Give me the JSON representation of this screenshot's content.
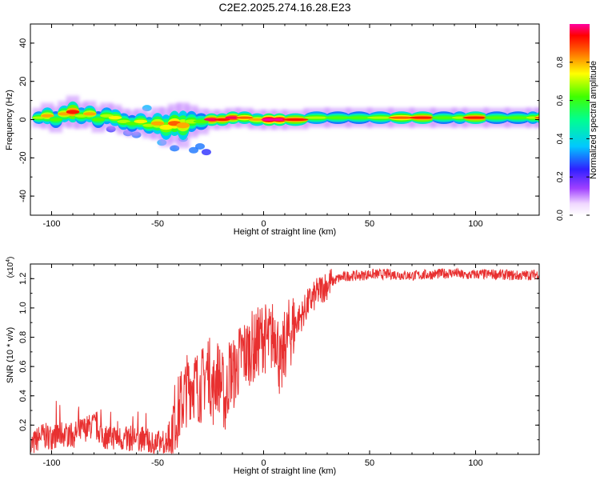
{
  "title": "C2E2.2025.274.16.28.E23",
  "chart_data": [
    {
      "type": "heatmap",
      "xlabel": "Height of straight line (km)",
      "ylabel": "Frequency (Hz)",
      "xlim": [
        -110,
        130
      ],
      "ylim": [
        -50,
        50
      ],
      "xticks": [
        -100,
        -50,
        0,
        50,
        100
      ],
      "yticks": [
        -40,
        -20,
        0,
        20,
        40
      ],
      "colorbar": {
        "label": "Normalized spectral amplitude",
        "range": [
          0,
          1
        ],
        "ticks": [
          "0.0",
          "0.2",
          "0.4",
          "0.6",
          "0.8"
        ],
        "tick_values": [
          0.0,
          0.2,
          0.4,
          0.6,
          0.8
        ]
      },
      "band": [
        {
          "x": -108,
          "f": 1,
          "w": 3,
          "a": 0.6
        },
        {
          "x": -104,
          "f": 2,
          "w": 4,
          "a": 0.7
        },
        {
          "x": -100,
          "f": 0,
          "w": 4,
          "a": 0.55
        },
        {
          "x": -96,
          "f": 3,
          "w": 4,
          "a": 0.7
        },
        {
          "x": -92,
          "f": 4,
          "w": 5,
          "a": 0.8
        },
        {
          "x": -88,
          "f": 2,
          "w": 4,
          "a": 0.6
        },
        {
          "x": -84,
          "f": 3,
          "w": 4,
          "a": 0.7
        },
        {
          "x": -80,
          "f": 0,
          "w": 4,
          "a": 0.55
        },
        {
          "x": -76,
          "f": 2,
          "w": 4,
          "a": 0.6
        },
        {
          "x": -72,
          "f": 1,
          "w": 4,
          "a": 0.65
        },
        {
          "x": -68,
          "f": -1,
          "w": 4,
          "a": 0.6
        },
        {
          "x": -64,
          "f": -2,
          "w": 4,
          "a": 0.55
        },
        {
          "x": -60,
          "f": -1,
          "w": 4,
          "a": 0.65
        },
        {
          "x": -56,
          "f": -3,
          "w": 4,
          "a": 0.6
        },
        {
          "x": -52,
          "f": -2,
          "w": 5,
          "a": 0.7
        },
        {
          "x": -48,
          "f": -4,
          "w": 6,
          "a": 0.65
        },
        {
          "x": -44,
          "f": -2,
          "w": 6,
          "a": 0.75
        },
        {
          "x": -40,
          "f": -3,
          "w": 7,
          "a": 0.7
        },
        {
          "x": -36,
          "f": -1,
          "w": 5,
          "a": 0.6
        },
        {
          "x": -32,
          "f": -1,
          "w": 4,
          "a": 0.55
        },
        {
          "x": -27,
          "f": 0,
          "w": 3,
          "a": 0.85
        },
        {
          "x": -22,
          "f": 0,
          "w": 3,
          "a": 0.8
        },
        {
          "x": -17,
          "f": 1,
          "w": 3,
          "a": 0.85
        },
        {
          "x": -12,
          "f": 1,
          "w": 3,
          "a": 0.75
        },
        {
          "x": -6,
          "f": 0,
          "w": 3,
          "a": 0.7
        },
        {
          "x": 0,
          "f": 0,
          "w": 3,
          "a": 0.95
        },
        {
          "x": 5,
          "f": 0,
          "w": 3,
          "a": 0.9
        },
        {
          "x": 10,
          "f": 0,
          "w": 3,
          "a": 0.8
        },
        {
          "x": 20,
          "f": 1,
          "w": 3,
          "a": 0.6
        },
        {
          "x": 30,
          "f": 1,
          "w": 3,
          "a": 0.55
        },
        {
          "x": 40,
          "f": 1,
          "w": 3,
          "a": 0.55
        },
        {
          "x": 50,
          "f": 1,
          "w": 3,
          "a": 0.6
        },
        {
          "x": 60,
          "f": 1,
          "w": 3,
          "a": 0.75
        },
        {
          "x": 70,
          "f": 1,
          "w": 3,
          "a": 0.8
        },
        {
          "x": 80,
          "f": 1,
          "w": 3,
          "a": 0.55
        },
        {
          "x": 90,
          "f": 1,
          "w": 3,
          "a": 0.6
        },
        {
          "x": 95,
          "f": 1,
          "w": 3,
          "a": 0.8
        },
        {
          "x": 105,
          "f": 1,
          "w": 3,
          "a": 0.55
        },
        {
          "x": 115,
          "f": 1,
          "w": 3,
          "a": 0.55
        },
        {
          "x": 125,
          "f": 1,
          "w": 3,
          "a": 0.6
        },
        {
          "x": 129,
          "f": 1,
          "w": 3,
          "a": 0.75
        }
      ],
      "blobs": [
        {
          "x": -48,
          "f": -12,
          "a": 0.35
        },
        {
          "x": -42,
          "f": -15,
          "a": 0.3
        },
        {
          "x": -38,
          "f": -10,
          "a": 0.35
        },
        {
          "x": -33,
          "f": -16,
          "a": 0.3
        },
        {
          "x": -30,
          "f": -14,
          "a": 0.3
        },
        {
          "x": -27,
          "f": -17,
          "a": 0.25
        },
        {
          "x": -55,
          "f": 6,
          "a": 0.35
        },
        {
          "x": -60,
          "f": -8,
          "a": 0.3
        },
        {
          "x": -64,
          "f": -7,
          "a": 0.3
        },
        {
          "x": -72,
          "f": -5,
          "a": 0.25
        },
        {
          "x": -50,
          "f": -6,
          "a": 0.35
        }
      ]
    },
    {
      "type": "line",
      "xlabel": "Height of straight line (km)",
      "ylabel": "SNR (10 * v/v)",
      "y_multiplier": "(x10",
      "y_multiplier_exp": "4",
      "xlim": [
        -110,
        130
      ],
      "ylim": [
        0,
        1.3
      ],
      "xticks": [
        -100,
        -50,
        0,
        50,
        100
      ],
      "yticks": [
        0.2,
        0.4,
        0.6,
        0.8,
        1.0,
        1.2
      ],
      "ytick_labels": [
        "0.2",
        "0.4",
        "0.6",
        "0.8",
        "1.0",
        "1.2"
      ],
      "color": "#e83030",
      "x": [
        -110,
        -105,
        -100,
        -95,
        -90,
        -85,
        -80,
        -75,
        -70,
        -65,
        -60,
        -55,
        -50,
        -45,
        -42,
        -40,
        -38,
        -36,
        -34,
        -32,
        -30,
        -28,
        -26,
        -24,
        -22,
        -20,
        -18,
        -16,
        -14,
        -12,
        -10,
        -8,
        -6,
        -4,
        -2,
        0,
        2,
        4,
        6,
        8,
        10,
        12,
        15,
        18,
        21,
        24,
        27,
        30,
        35,
        40,
        45,
        50,
        55,
        60,
        70,
        80,
        90,
        95,
        100,
        110,
        120,
        130
      ],
      "y": [
        0.05,
        0.13,
        0.12,
        0.14,
        0.13,
        0.17,
        0.2,
        0.12,
        0.12,
        0.1,
        0.12,
        0.09,
        0.07,
        0.1,
        0.25,
        0.3,
        0.38,
        0.45,
        0.5,
        0.48,
        0.45,
        0.52,
        0.6,
        0.42,
        0.55,
        0.5,
        0.35,
        0.58,
        0.55,
        0.62,
        0.7,
        0.68,
        0.74,
        0.72,
        0.78,
        0.82,
        0.76,
        0.8,
        0.85,
        0.55,
        0.75,
        0.82,
        0.9,
        0.95,
        1.03,
        1.08,
        1.13,
        1.16,
        1.2,
        1.22,
        1.22,
        1.23,
        1.23,
        1.23,
        1.22,
        1.23,
        1.24,
        1.22,
        1.23,
        1.23,
        1.22,
        1.23
      ]
    }
  ]
}
